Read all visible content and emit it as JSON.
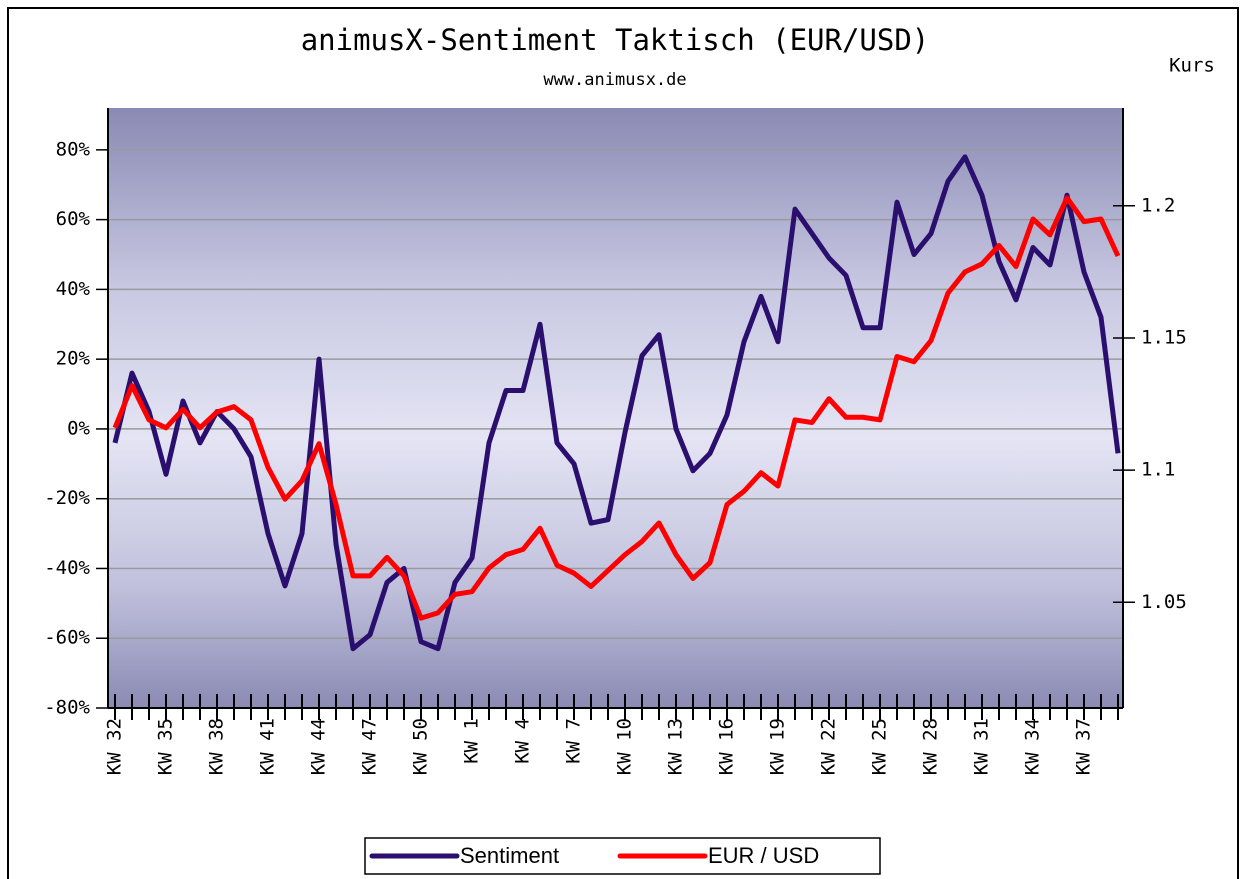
{
  "chart_data": {
    "type": "line",
    "title": "animusX-Sentiment Taktisch (EUR/USD)",
    "subtitle": "www.animusx.de",
    "y2_label": "Kurs",
    "categories": [
      "KW 32",
      null,
      null,
      "KW 35",
      null,
      null,
      "KW 38",
      null,
      null,
      "KW 41",
      null,
      null,
      "KW 44",
      null,
      null,
      "KW 47",
      null,
      null,
      "KW 50",
      null,
      null,
      "KW 1",
      null,
      null,
      "KW 4",
      null,
      null,
      "KW 7",
      null,
      null,
      "KW 10",
      null,
      null,
      "KW 13",
      null,
      null,
      "KW 16",
      null,
      null,
      "KW 19",
      null,
      null,
      "KW 22",
      null,
      null,
      "KW 25",
      null,
      null,
      "KW 28",
      null,
      null,
      "KW 31",
      null,
      null,
      "KW 34",
      null,
      null,
      "KW 37",
      null,
      null
    ],
    "series": [
      {
        "name": "Sentiment",
        "color": "#2a0f6e",
        "axis": "y",
        "values": [
          -4,
          16,
          5,
          -13,
          8,
          -4,
          5,
          0,
          -8,
          -30,
          -45,
          -30,
          20,
          -33,
          -63,
          -59,
          -44,
          -40,
          -61,
          -63,
          -44,
          -37,
          -4,
          11,
          11,
          30,
          -4,
          -10,
          -27,
          -26,
          -1,
          21,
          27,
          0,
          -12,
          -7,
          4,
          25,
          38,
          25,
          63,
          56,
          49,
          44,
          29,
          29,
          65,
          50,
          56,
          71,
          78,
          67,
          48,
          37,
          52,
          47,
          67,
          45,
          32,
          -7
        ]
      },
      {
        "name": "EUR / USD",
        "color": "#ff0000",
        "axis": "y2",
        "values": [
          1.116,
          1.132,
          1.119,
          1.116,
          1.123,
          1.116,
          1.122,
          1.124,
          1.119,
          1.101,
          1.089,
          1.096,
          1.11,
          1.087,
          1.06,
          1.06,
          1.067,
          1.06,
          1.044,
          1.046,
          1.053,
          1.054,
          1.063,
          1.068,
          1.07,
          1.078,
          1.064,
          1.061,
          1.056,
          1.062,
          1.068,
          1.073,
          1.08,
          1.068,
          1.059,
          1.065,
          1.087,
          1.092,
          1.099,
          1.094,
          1.119,
          1.118,
          1.127,
          1.12,
          1.12,
          1.119,
          1.143,
          1.141,
          1.149,
          1.167,
          1.175,
          1.178,
          1.185,
          1.177,
          1.195,
          1.189,
          1.203,
          1.194,
          1.195,
          1.181
        ]
      }
    ],
    "ylim": [
      -80,
      92
    ],
    "yticks": [
      {
        "value": -80,
        "label": "-80%"
      },
      {
        "value": -60,
        "label": "-60%"
      },
      {
        "value": -40,
        "label": "-40%"
      },
      {
        "value": -20,
        "label": "-20%"
      },
      {
        "value": 0,
        "label": "0%"
      },
      {
        "value": 20,
        "label": "20%"
      },
      {
        "value": 40,
        "label": "40%"
      },
      {
        "value": 60,
        "label": "60%"
      },
      {
        "value": 80,
        "label": "80%"
      }
    ],
    "y2lim": [
      1.01,
      1.237
    ],
    "y2ticks": [
      1.05,
      1.1,
      1.15,
      1.2
    ],
    "grid": true
  }
}
